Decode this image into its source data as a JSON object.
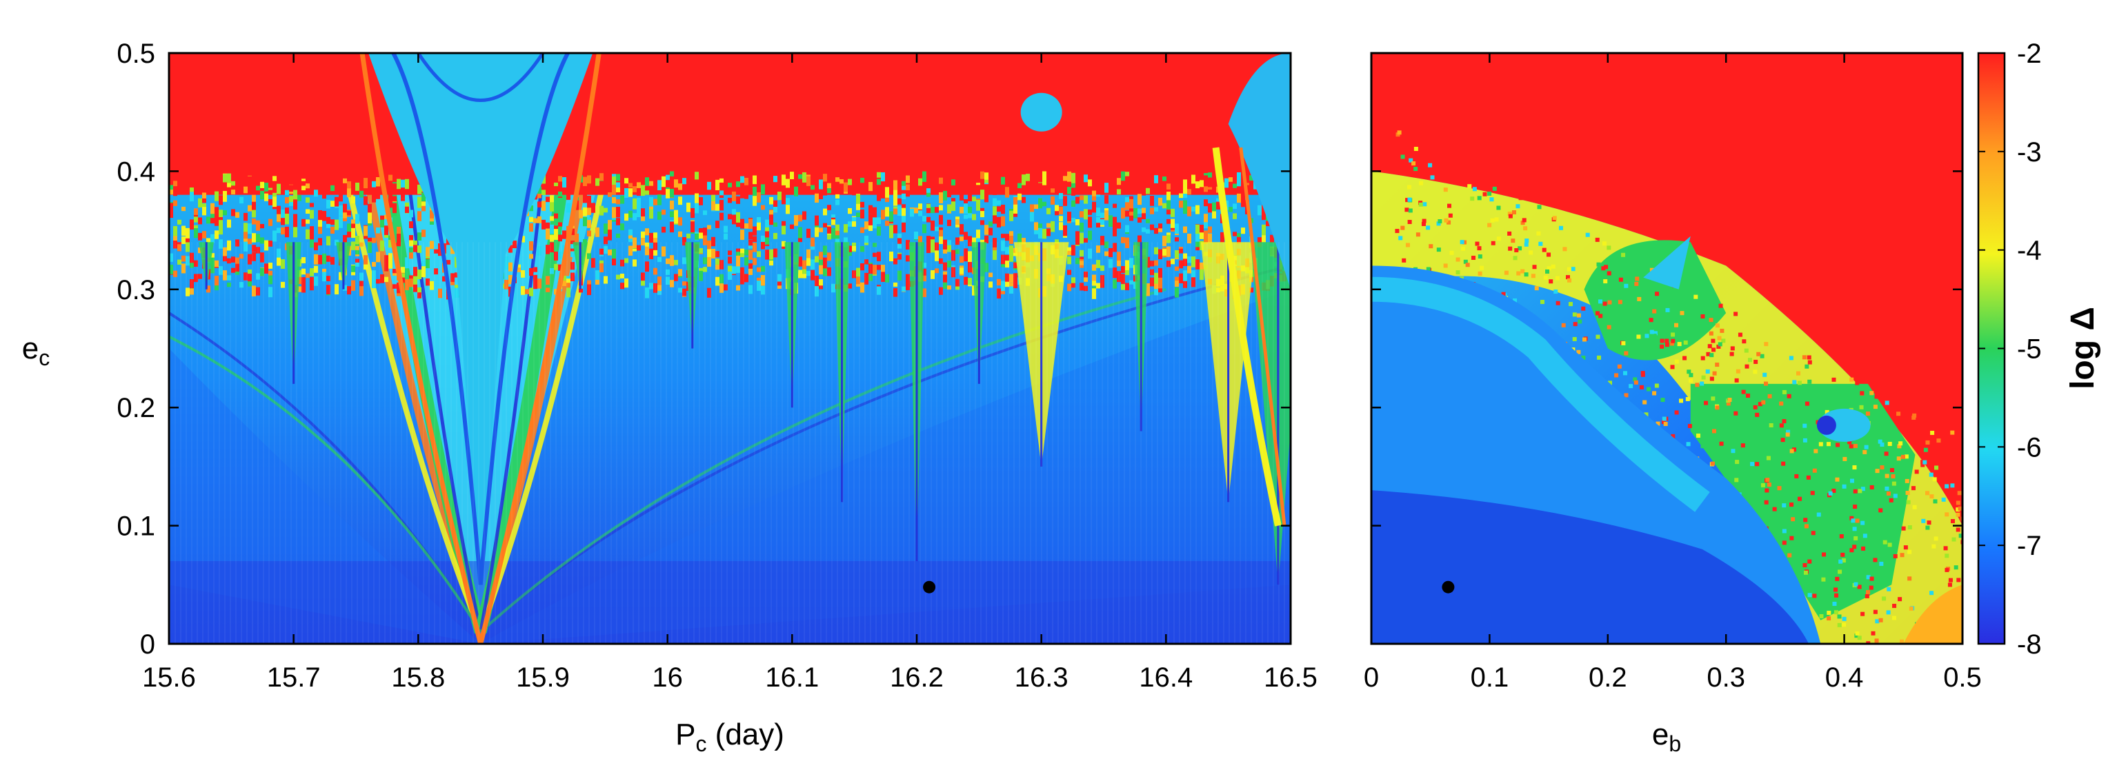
{
  "chart_data": [
    {
      "type": "heatmap",
      "panel": "left",
      "xlabel": {
        "main": "P",
        "sub": "c",
        "rest": " (day)"
      },
      "ylabel": {
        "main": "e",
        "sub": "c"
      },
      "xlim": [
        15.6,
        16.5
      ],
      "ylim": [
        0,
        0.5
      ],
      "xticks": [
        15.6,
        15.7,
        15.8,
        15.9,
        16,
        16.1,
        16.2,
        16.3,
        16.4,
        16.5
      ],
      "xtick_labels": [
        "15.6",
        "15.7",
        "15.8",
        "15.9",
        "16",
        "16.1",
        "16.2",
        "16.3",
        "16.4",
        "16.5"
      ],
      "yticks": [
        0,
        0.1,
        0.2,
        0.3,
        0.4,
        0.5
      ],
      "ytick_labels": [
        "0",
        "0.1",
        "0.2",
        "0.3",
        "0.4",
        "0.5"
      ],
      "marker": {
        "x": 16.21,
        "y": 0.048
      },
      "features": {
        "resonance_center_x": 15.85,
        "chaotic_boundary_y": 0.36,
        "secondary_tongues_x": [
          15.63,
          15.7,
          15.74,
          15.93,
          16.02,
          16.1,
          16.14,
          16.2,
          16.25,
          16.3,
          16.38,
          16.45,
          16.49
        ]
      }
    },
    {
      "type": "heatmap",
      "panel": "right",
      "xlabel": {
        "main": "e",
        "sub": "b",
        "rest": ""
      },
      "ylabel": null,
      "xlim": [
        0,
        0.5
      ],
      "ylim": [
        0,
        0.5
      ],
      "xticks": [
        0,
        0.1,
        0.2,
        0.3,
        0.4,
        0.5
      ],
      "xtick_labels": [
        "0",
        "0.1",
        "0.2",
        "0.3",
        "0.4",
        "0.5"
      ],
      "marker": {
        "x": 0.065,
        "y": 0.048
      }
    },
    {
      "type": "colorbar",
      "label": {
        "text": "log ",
        "symbol": "Δ"
      },
      "range": [
        -8,
        -2
      ],
      "ticks": [
        -8,
        -7,
        -6,
        -5,
        -4,
        -3,
        -2
      ],
      "tick_labels": [
        "-8",
        "-7",
        "-6",
        "-5",
        "-4",
        "-3",
        "-2"
      ],
      "colors": [
        "#2a2de0",
        "#1877ff",
        "#22d8f2",
        "#2ad25a",
        "#f4f41e",
        "#ffa020",
        "#ff1e1e"
      ]
    }
  ]
}
